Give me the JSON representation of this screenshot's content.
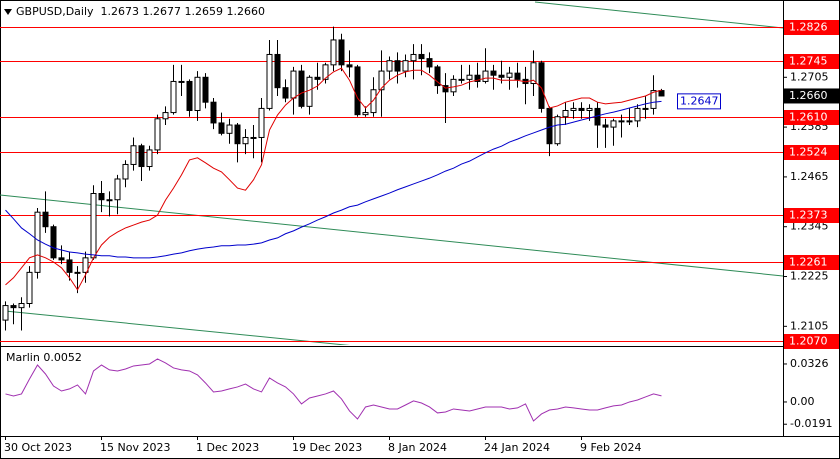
{
  "chart_data": [
    {
      "type": "candlestick",
      "title": "GBPUSD,Daily  1.2673 1.2677 1.2659 1.2660",
      "categories": [
        "30 Oct 2023",
        null,
        null,
        null,
        null,
        null,
        null,
        null,
        null,
        null,
        null,
        null,
        "15 Nov 2023",
        null,
        null,
        null,
        null,
        null,
        null,
        null,
        null,
        null,
        null,
        null,
        "1 Dec 2023",
        null,
        null,
        null,
        null,
        null,
        null,
        null,
        null,
        null,
        null,
        null,
        "19 Dec 2023",
        null,
        null,
        null,
        null,
        null,
        null,
        null,
        null,
        null,
        null,
        null,
        "8 Jan 2024",
        null,
        null,
        null,
        null,
        null,
        null,
        null,
        null,
        null,
        null,
        null,
        "24 Jan 2024",
        null,
        null,
        null,
        null,
        null,
        null,
        null,
        null,
        null,
        null,
        null,
        "9 Feb 2024",
        null,
        null,
        null,
        null,
        null,
        null,
        null,
        null,
        null,
        null
      ],
      "open": [
        1.212,
        1.2155,
        1.215,
        1.216,
        1.2235,
        1.238,
        1.2345,
        1.227,
        1.2265,
        1.2235,
        1.2235,
        1.227,
        1.2425,
        1.241,
        1.241,
        1.246,
        1.2495,
        1.254,
        1.249,
        1.253,
        1.2605,
        1.262,
        1.2695,
        1.2695,
        1.2625,
        1.2705,
        1.2645,
        1.2595,
        1.257,
        1.259,
        1.2545,
        1.256,
        1.256,
        1.263,
        1.276,
        1.268,
        1.2655,
        1.272,
        1.2635,
        1.2705,
        1.27,
        1.2735,
        1.2795,
        1.2735,
        1.273,
        1.2615,
        1.262,
        1.2675,
        1.272,
        1.2745,
        1.272,
        1.2745,
        1.276,
        1.275,
        1.273,
        1.2685,
        1.267,
        1.27,
        1.27,
        1.271,
        1.2695,
        1.272,
        1.271,
        1.2705,
        1.2715,
        1.27,
        1.269,
        1.274,
        1.263,
        1.2545,
        1.261,
        1.2625,
        1.263,
        1.2625,
        1.263,
        1.259,
        1.2585,
        1.26,
        1.26,
        1.26,
        1.263,
        1.263,
        1.2673
      ],
      "high": [
        1.2165,
        1.216,
        1.2175,
        1.225,
        1.239,
        1.243,
        1.235,
        1.23,
        1.2285,
        1.225,
        1.2285,
        1.2445,
        1.2455,
        1.243,
        1.247,
        1.2505,
        1.256,
        1.2545,
        1.254,
        1.2615,
        1.2635,
        1.2735,
        1.2735,
        1.27,
        1.272,
        1.2715,
        1.2655,
        1.262,
        1.2605,
        1.2595,
        1.258,
        1.259,
        1.2655,
        1.2795,
        1.2795,
        1.27,
        1.273,
        1.2735,
        1.271,
        1.274,
        1.274,
        1.2827,
        1.281,
        1.277,
        1.2735,
        1.2635,
        1.2705,
        1.277,
        1.2755,
        1.2765,
        1.276,
        1.2785,
        1.2785,
        1.2765,
        1.2735,
        1.2715,
        1.271,
        1.2735,
        1.2735,
        1.274,
        1.2775,
        1.2735,
        1.2745,
        1.273,
        1.274,
        1.273,
        1.277,
        1.2745,
        1.2635,
        1.2615,
        1.2645,
        1.2645,
        1.2645,
        1.264,
        1.2645,
        1.2605,
        1.2605,
        1.2615,
        1.263,
        1.264,
        1.266,
        1.271,
        1.2677
      ],
      "low": [
        1.2095,
        1.211,
        1.2095,
        1.215,
        1.222,
        1.233,
        1.2265,
        1.2255,
        1.2215,
        1.2185,
        1.221,
        1.2265,
        1.238,
        1.237,
        1.2375,
        1.244,
        1.248,
        1.2455,
        1.248,
        1.252,
        1.259,
        1.2615,
        1.266,
        1.261,
        1.26,
        1.263,
        1.258,
        1.2565,
        1.2545,
        1.25,
        1.252,
        1.251,
        1.25,
        1.2625,
        1.266,
        1.2645,
        1.2615,
        1.263,
        1.2615,
        1.2675,
        1.269,
        1.272,
        1.272,
        1.2705,
        1.261,
        1.261,
        1.261,
        1.261,
        1.27,
        1.269,
        1.2705,
        1.27,
        1.271,
        1.2715,
        1.2665,
        1.2595,
        1.266,
        1.269,
        1.2675,
        1.268,
        1.269,
        1.2675,
        1.269,
        1.2675,
        1.268,
        1.264,
        1.266,
        1.262,
        1.2515,
        1.254,
        1.259,
        1.2605,
        1.2605,
        1.26,
        1.2535,
        1.2535,
        1.254,
        1.256,
        1.259,
        1.2585,
        1.2605,
        1.2615,
        1.2659
      ],
      "close": [
        1.2155,
        1.215,
        1.216,
        1.2235,
        1.238,
        1.2345,
        1.227,
        1.2265,
        1.2235,
        1.2235,
        1.227,
        1.2425,
        1.241,
        1.241,
        1.246,
        1.2495,
        1.254,
        1.249,
        1.253,
        1.2605,
        1.262,
        1.2695,
        1.2695,
        1.2625,
        1.2705,
        1.2645,
        1.2595,
        1.257,
        1.259,
        1.2545,
        1.256,
        1.256,
        1.263,
        1.276,
        1.268,
        1.2655,
        1.272,
        1.2635,
        1.2705,
        1.27,
        1.2735,
        1.2795,
        1.2735,
        1.273,
        1.2615,
        1.262,
        1.2675,
        1.272,
        1.2745,
        1.272,
        1.2745,
        1.276,
        1.275,
        1.273,
        1.2685,
        1.267,
        1.27,
        1.27,
        1.271,
        1.2695,
        1.272,
        1.271,
        1.2705,
        1.2715,
        1.27,
        1.269,
        1.274,
        1.263,
        1.2545,
        1.261,
        1.2625,
        1.263,
        1.2625,
        1.263,
        1.259,
        1.2585,
        1.26,
        1.26,
        1.26,
        1.263,
        1.263,
        1.2673,
        1.266
      ],
      "lines": [
        {
          "color": "#e00000",
          "values": [
            1.2205,
            1.2222,
            1.2246,
            1.227,
            1.2277,
            1.227,
            1.226,
            1.2246,
            1.2222,
            1.2193,
            1.2229,
            1.227,
            1.2301,
            1.232,
            1.2332,
            1.2342,
            1.2349,
            1.2356,
            1.2361,
            1.2373,
            1.2409,
            1.2438,
            1.247,
            1.2506,
            1.2511,
            1.2499,
            1.2486,
            1.2477,
            1.2458,
            1.2438,
            1.2433,
            1.2458,
            1.2494,
            1.2578,
            1.2614,
            1.2638,
            1.2655,
            1.2667,
            1.2674,
            1.2684,
            1.2703,
            1.2718,
            1.2727,
            1.2698,
            1.2655,
            1.2631,
            1.265,
            1.2679,
            1.2698,
            1.271,
            1.2718,
            1.2722,
            1.2722,
            1.271,
            1.2694,
            1.2679,
            1.2682,
            1.2686,
            1.2694,
            1.2698,
            1.2703,
            1.2703,
            1.2698,
            1.2698,
            1.2698,
            1.2694,
            1.2698,
            1.2679,
            1.2631,
            1.2636,
            1.2645,
            1.265,
            1.2655,
            1.2655,
            1.2645,
            1.2641,
            1.2643,
            1.2645,
            1.265,
            1.2655,
            1.266,
            1.2669,
            1.2674
          ]
        },
        {
          "color": "#0000cc",
          "values": [
            1.2385,
            1.2364,
            1.2342,
            1.2328,
            1.2313,
            1.2303,
            1.2294,
            1.2289,
            1.2284,
            1.2282,
            1.2279,
            1.2277,
            1.2275,
            1.2275,
            1.2272,
            1.2272,
            1.227,
            1.227,
            1.227,
            1.2272,
            1.2275,
            1.2279,
            1.2282,
            1.2287,
            1.2291,
            1.2294,
            1.2296,
            1.2299,
            1.2299,
            1.2301,
            1.2301,
            1.2303,
            1.2306,
            1.2313,
            1.2318,
            1.2328,
            1.2335,
            1.2344,
            1.2352,
            1.2361,
            1.2369,
            1.2378,
            1.2385,
            1.2393,
            1.2397,
            1.2405,
            1.2412,
            1.2419,
            1.2426,
            1.2434,
            1.2441,
            1.2448,
            1.2455,
            1.2462,
            1.247,
            1.2479,
            1.2486,
            1.2496,
            1.2503,
            1.2513,
            1.2523,
            1.2532,
            1.2539,
            1.2549,
            1.2556,
            1.2564,
            1.2571,
            1.2578,
            1.2585,
            1.259,
            1.2592,
            1.2597,
            1.2602,
            1.2607,
            1.2612,
            1.2617,
            1.2621,
            1.2626,
            1.2631,
            1.2636,
            1.2641,
            1.2645,
            1.2647
          ]
        }
      ],
      "levels": [
        1.2826,
        1.2745,
        {
          "value": 1.261,
          "label": "1.2610"
        },
        1.2524,
        1.2373,
        1.2261,
        {
          "value": 1.207,
          "label": "1.2070"
        }
      ],
      "level_color": "#ff0000",
      "last_price": {
        "value": 1.266,
        "label": "1.2660"
      },
      "ma_label": 1.2647,
      "ylim": [
        1.206,
        1.2884
      ],
      "yticks": [
        1.2705,
        1.2585,
        1.2465,
        1.2345,
        1.2225,
        1.2105
      ],
      "grid": false
    },
    {
      "type": "line",
      "title": "Marlin 0.0052",
      "color": "#a030b0",
      "values": [
        0.0069,
        0.0051,
        0.0069,
        0.0197,
        0.0317,
        0.024,
        0.0137,
        0.0094,
        0.0112,
        0.0146,
        0.0069,
        0.0266,
        0.0317,
        0.0275,
        0.0266,
        0.0283,
        0.0309,
        0.0317,
        0.0326,
        0.0369,
        0.0335,
        0.0292,
        0.0275,
        0.0266,
        0.0232,
        0.0163,
        0.0086,
        0.0094,
        0.0112,
        0.0129,
        0.0154,
        0.0112,
        0.0086,
        0.0206,
        0.0163,
        0.0129,
        0.0069,
        -0.0017,
        0.0034,
        0.0051,
        0.0069,
        0.0094,
        0.0026,
        -0.0077,
        -0.0146,
        -0.0043,
        -0.0026,
        -0.0043,
        -0.006,
        -0.006,
        -0.0026,
        0.0009,
        -0.0009,
        -0.0043,
        -0.0094,
        -0.0086,
        -0.006,
        -0.0069,
        -0.0077,
        -0.006,
        -0.0043,
        -0.0043,
        -0.0043,
        -0.006,
        -0.0051,
        -0.0017,
        -0.0163,
        -0.0103,
        -0.0069,
        -0.006,
        -0.0043,
        -0.0051,
        -0.006,
        -0.0069,
        -0.0069,
        -0.0051,
        -0.0034,
        -0.0026,
        0,
        0.0017,
        0.0043,
        0.0069,
        0.0052
      ],
      "ylim": [
        -0.0292,
        0.0463
      ],
      "yticks": [
        0.0326,
        {
          "value": 0,
          "label": "0.00"
        },
        -0.0191
      ],
      "grid": false
    }
  ]
}
